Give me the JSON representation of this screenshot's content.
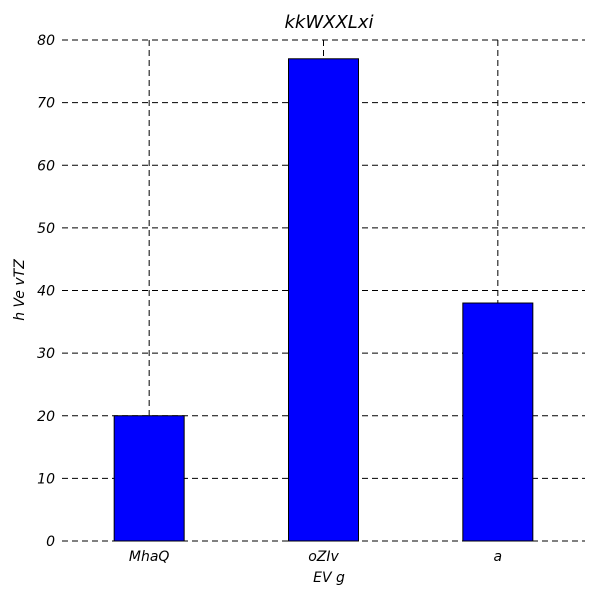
{
  "chart_data": {
    "type": "bar",
    "title": "kkWXXLxi",
    "xlabel": "EV g",
    "ylabel": "h  Ve vTZ",
    "categories": [
      "MhaQ",
      "oZIv",
      "a"
    ],
    "values": [
      20,
      77,
      38
    ],
    "ylim": [
      0,
      80
    ],
    "yticks": [
      0,
      10,
      20,
      30,
      40,
      50,
      60,
      70,
      80
    ],
    "grid": true,
    "bar_color": "#0000ff"
  }
}
